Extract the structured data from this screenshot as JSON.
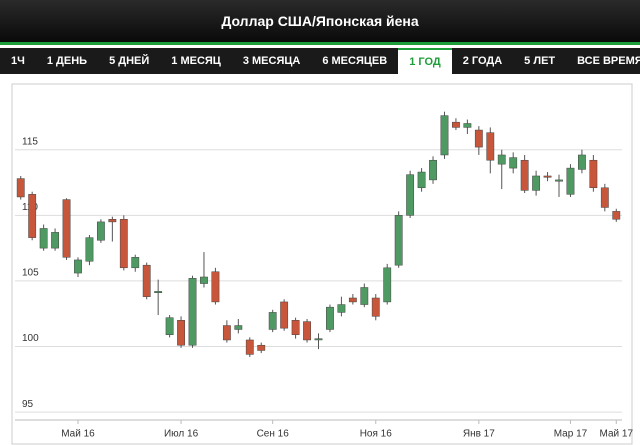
{
  "header": {
    "title": "Доллар США/Японская йена"
  },
  "tabs": [
    {
      "label": "1Ч"
    },
    {
      "label": "1 ДЕНЬ"
    },
    {
      "label": "5 ДНЕЙ"
    },
    {
      "label": "1 МЕСЯЦ"
    },
    {
      "label": "3 МЕСЯЦА"
    },
    {
      "label": "6 МЕСЯЦЕВ"
    },
    {
      "label": "1 ГОД",
      "active": true
    },
    {
      "label": "2 ГОДА"
    },
    {
      "label": "5 ЛЕТ"
    },
    {
      "label": "ВСЕ ВРЕМЯ"
    }
  ],
  "chart_data": {
    "type": "candlestick",
    "categories": [
      null,
      null,
      null,
      null,
      null,
      "Май 16",
      null,
      null,
      null,
      null,
      null,
      null,
      null,
      null,
      "Июл 16",
      null,
      null,
      null,
      null,
      null,
      null,
      null,
      "Сен 16",
      null,
      null,
      null,
      null,
      null,
      null,
      null,
      null,
      "Ноя 16",
      null,
      null,
      null,
      null,
      null,
      null,
      null,
      null,
      "Янв 17",
      null,
      null,
      null,
      null,
      null,
      null,
      null,
      "Мар 17",
      null,
      null,
      null,
      "Май 17"
    ],
    "open": [
      112.8,
      111.6,
      107.5,
      107.5,
      111.2,
      105.6,
      106.5,
      108.1,
      109.7,
      109.7,
      106.0,
      106.2,
      104.1,
      100.9,
      102.0,
      100.1,
      104.8,
      105.7,
      101.6,
      101.3,
      100.5,
      100.1,
      101.3,
      103.4,
      102.0,
      101.9,
      100.5,
      101.3,
      102.6,
      103.7,
      103.2,
      103.7,
      103.4,
      106.2,
      110.0,
      112.1,
      112.7,
      114.6,
      117.1,
      116.7,
      116.5,
      116.3,
      113.9,
      113.6,
      114.2,
      111.9,
      113.0,
      112.6,
      111.6,
      113.5,
      114.2,
      112.1,
      110.3
    ],
    "high": [
      113.0,
      111.8,
      109.3,
      109.0,
      111.3,
      106.8,
      108.5,
      109.7,
      109.9,
      110.0,
      107.0,
      106.4,
      105.1,
      102.4,
      102.3,
      105.4,
      107.2,
      106.0,
      102.0,
      102.1,
      100.7,
      100.3,
      102.8,
      103.6,
      102.2,
      102.1,
      101.0,
      103.2,
      103.8,
      104.0,
      104.8,
      104.0,
      106.3,
      110.3,
      113.4,
      113.6,
      114.5,
      117.9,
      117.4,
      117.3,
      116.8,
      116.7,
      115.0,
      114.8,
      114.6,
      113.4,
      113.3,
      113.1,
      113.9,
      115.0,
      114.6,
      112.4,
      110.5
    ],
    "low": [
      111.2,
      108.1,
      107.3,
      107.3,
      106.6,
      105.3,
      106.2,
      107.9,
      108.0,
      105.8,
      105.7,
      103.6,
      102.4,
      100.7,
      99.9,
      99.9,
      104.5,
      103.2,
      100.3,
      101.0,
      99.2,
      99.5,
      101.1,
      101.2,
      100.6,
      100.3,
      99.8,
      101.1,
      102.3,
      103.2,
      103.0,
      102.0,
      103.2,
      106.0,
      109.8,
      111.8,
      112.4,
      114.3,
      116.5,
      116.2,
      114.6,
      113.2,
      112.0,
      113.2,
      111.7,
      111.5,
      112.6,
      111.4,
      111.4,
      113.2,
      111.8,
      110.3,
      109.5
    ],
    "close": [
      111.4,
      108.3,
      109.0,
      108.7,
      106.8,
      106.6,
      108.3,
      109.5,
      109.5,
      106.0,
      106.8,
      103.8,
      104.2,
      102.2,
      100.1,
      105.2,
      105.3,
      103.4,
      100.5,
      101.6,
      99.4,
      99.7,
      102.6,
      101.4,
      100.9,
      100.5,
      100.6,
      103.0,
      103.2,
      103.4,
      104.5,
      102.3,
      106.0,
      110.0,
      113.1,
      113.3,
      114.2,
      117.6,
      116.7,
      117.0,
      115.2,
      114.2,
      114.6,
      114.4,
      111.9,
      113.0,
      112.9,
      112.7,
      113.6,
      114.6,
      112.1,
      110.6,
      109.7
    ],
    "up_color": "#4f9a62",
    "down_color": "#c8563b",
    "ylim": [
      94.4,
      119.4
    ],
    "yticks": [
      95,
      100,
      105,
      110,
      115
    ],
    "grid": true
  }
}
